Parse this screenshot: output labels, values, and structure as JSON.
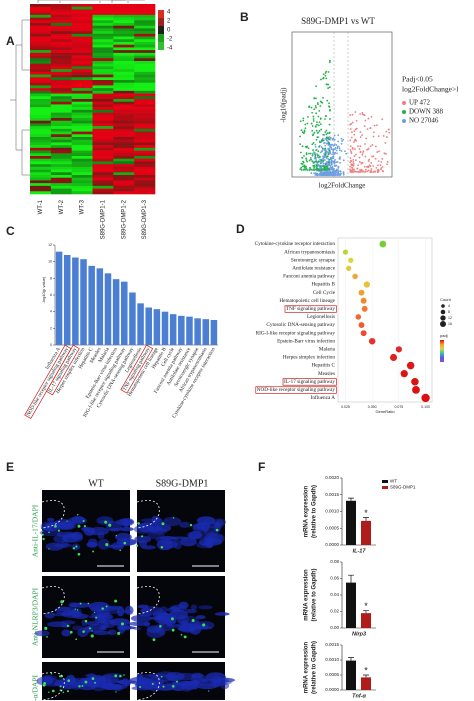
{
  "panel_labels": [
    "A",
    "B",
    "C",
    "D",
    "E",
    "F"
  ],
  "heatmap": {
    "samples": [
      "WT-1",
      "WT-2",
      "WT-3",
      "S89G-DMP1-1",
      "S89G-DMP1-2",
      "S89G-DMP1-3"
    ],
    "scale_labels": [
      4,
      2,
      0,
      -2,
      -4
    ]
  },
  "volcano": {
    "title": "S89G-DMP1 vs WT",
    "x_label": "log2FoldChange",
    "y_label": "-log10(padj)",
    "legend_title": [
      "Padj<0.05",
      "log2FoldChange>l"
    ],
    "legend": [
      {
        "label": "UP 472",
        "color": "#f08080"
      },
      {
        "label": "DOWN 388",
        "color": "#22b14c"
      },
      {
        "label": "NO 27046",
        "color": "#6f9fe0"
      }
    ]
  },
  "microscopy": {
    "columns": [
      "WT",
      "S89G-DMP1"
    ],
    "rows": [
      "Anti-IL-17/DAPI",
      "Anti-NLRP3/DAPI",
      "Anti-TNF-α/DAPI"
    ]
  },
  "chart_data": [
    {
      "type": "bar",
      "y_label": "-log10(p value)",
      "color": "#4a7fd4",
      "categories": [
        "Influenza A",
        "NOD-like receptor signaling pathway",
        "IL-17 signaling pathway",
        "Herpes simplex infection",
        "Hepatitis C",
        "Measles",
        "Malaria",
        "Epstein-Barr virus infection",
        "RIG-I-like receptor signaling pathway",
        "Cytosolic DNA-sensing pathway",
        "Legionellosis",
        "TNF signaling pathway",
        "Hematopoietic cell lineage",
        "Hepatitis B",
        "Cell cycle",
        "Fanconi anemia pathway",
        "Antifolate resistance",
        "Serotonergic synapse",
        "African trypanosomiasis",
        "Cytokine-cytokine receptor interaction"
      ],
      "values": [
        11.2,
        10.8,
        10.5,
        10.3,
        9.5,
        9.2,
        8.6,
        7.9,
        7.6,
        6.3,
        5.0,
        4.5,
        4.3,
        4.0,
        3.7,
        3.5,
        3.4,
        3.2,
        3.1,
        3.0
      ],
      "highlight": [
        1,
        2,
        11
      ],
      "ylim": [
        0,
        12
      ],
      "yticks": [
        0,
        2,
        4,
        6,
        8,
        10,
        12
      ]
    },
    {
      "type": "dot",
      "x_label": "GeneRatio",
      "size_title": "Count",
      "size_ticks": [
        4,
        8,
        12,
        16
      ],
      "color_title": "padj",
      "categories": [
        "Cytokine-cytokine receptor interaction",
        "African trypanosomiasis",
        "Serotonergic synapse",
        "Antifolate resistance",
        "Fanconi anemia pathway",
        "Hepatitis B",
        "Cell Cycle",
        "Hematopoietic cell lineage",
        "TNF signaling pathway",
        "Legionellosis",
        "Cytosolic DNA-sensing pathway",
        "RIG-I-like receptor signaling pathway",
        "Epstein-Barr virus infection",
        "Malaria",
        "Herpes simplex infection",
        "Hepatitis C",
        "Measles",
        "IL-17 signaling pathway",
        "NOD-like receptor signaling pathway",
        "Influenza A"
      ],
      "values": [
        0.06,
        0.025,
        0.03,
        0.028,
        0.034,
        0.045,
        0.04,
        0.042,
        0.043,
        0.037,
        0.04,
        0.042,
        0.05,
        0.075,
        0.07,
        0.086,
        0.08,
        0.09,
        0.091,
        0.1
      ],
      "sizes": [
        9,
        4,
        4,
        4,
        5,
        7,
        6,
        6,
        6,
        5,
        6,
        6,
        8,
        7,
        10,
        12,
        11,
        12,
        13,
        16
      ],
      "colors": [
        "#7ccc3a",
        "#b8d63a",
        "#d8d83a",
        "#e0c83a",
        "#e8a83a",
        "#e8c03a",
        "#f0a030",
        "#f08830",
        "#f07a30",
        "#f06a30",
        "#f05a30",
        "#ee4a30",
        "#e83030",
        "#e02828",
        "#e02020",
        "#dd1818",
        "#dd1515",
        "#dd1212",
        "#dd1010",
        "#dd0e0e"
      ],
      "highlight": [
        8,
        17,
        18
      ],
      "xlim": [
        0.018,
        0.106
      ],
      "xticks": [
        {
          "value": 0.025,
          "label": "0.025"
        },
        {
          "value": 0.05,
          "label": "0.050"
        },
        {
          "value": 0.075,
          "label": "0.075"
        },
        {
          "value": 0.1,
          "label": "0.100"
        }
      ]
    },
    {
      "type": "group_bar",
      "x_label": "IL-17",
      "y_label": [
        "mRNA expression",
        "(relative to Gapdh)"
      ],
      "annotation": "*",
      "legend": true,
      "series": [
        {
          "name": "WT",
          "color": "#111111",
          "values": [
            0.00132
          ],
          "errors": [
            8e-05
          ]
        },
        {
          "name": "S89G-DMP1",
          "color": "#b01c1c",
          "values": [
            0.00072
          ],
          "errors": [
            0.0001
          ]
        }
      ],
      "ylim": [
        0,
        0.002
      ],
      "yticks": [
        {
          "value": 0,
          "label": "0.0000"
        },
        0.0005,
        {
          "value": 0.001,
          "label": "0.0010"
        },
        0.0015,
        {
          "value": 0.002,
          "label": "0.0020"
        }
      ]
    },
    {
      "type": "group_bar",
      "x_label": "Nlrp3",
      "y_label": [
        "mRNA expression",
        "(relative to Gapdh)"
      ],
      "annotation": "*",
      "legend": false,
      "series": [
        {
          "name": "WT",
          "color": "#111111",
          "values": [
            0.055
          ],
          "errors": [
            0.009
          ]
        },
        {
          "name": "S89G-DMP1",
          "color": "#b01c1c",
          "values": [
            0.018
          ],
          "errors": [
            0.003
          ]
        }
      ],
      "ylim": [
        0,
        0.08
      ],
      "yticks": [
        {
          "value": 0,
          "label": "0.00"
        },
        0.02,
        0.04,
        0.06,
        0.08
      ]
    },
    {
      "type": "group_bar",
      "x_label": "Tnf-α",
      "y_label": [
        "mRNA expression",
        "(relative to Gapdh)"
      ],
      "annotation": "*",
      "legend": false,
      "series": [
        {
          "name": "WT",
          "color": "#111111",
          "values": [
            0.00098
          ],
          "errors": [
            0.0001
          ]
        },
        {
          "name": "S89G-DMP1",
          "color": "#b01c1c",
          "values": [
            0.00042
          ],
          "errors": [
            8e-05
          ]
        }
      ],
      "ylim": [
        0,
        0.0015
      ],
      "yticks": [
        {
          "value": 0,
          "label": "0.0000"
        },
        0.0005,
        {
          "value": 0.001,
          "label": "0.0010"
        },
        0.0015
      ]
    }
  ]
}
